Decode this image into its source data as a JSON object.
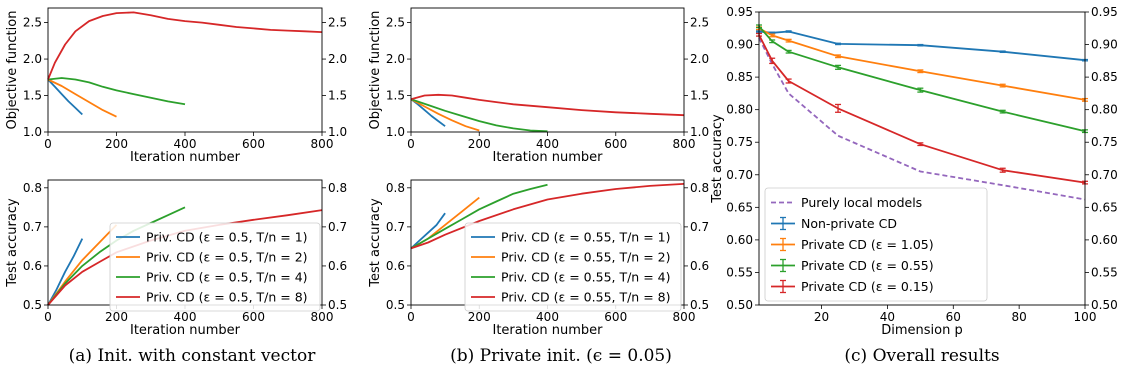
{
  "captions": [
    "(a) Init. with constant vector",
    "(b) Private init. (ϵ = 0.05)",
    "(c) Overall results"
  ],
  "colors": {
    "blue": "#1f77b4",
    "orange": "#ff7f0e",
    "green": "#2ca02c",
    "red": "#d62728",
    "purple": "#9467bd"
  },
  "chart_data": [
    {
      "id": "a-top",
      "type": "line",
      "xlabel": "Iteration number",
      "ylabel": "Objective function",
      "xlim": [
        0,
        800
      ],
      "ylim": [
        1.0,
        2.7
      ],
      "xticks": [
        0,
        200,
        400,
        600,
        800
      ],
      "yticks": [
        1.0,
        1.5,
        2.0,
        2.5
      ],
      "ytick_labels": [
        "1.0",
        "1.5",
        "2.0",
        "2.5"
      ],
      "series": [
        {
          "color": "#1f77b4",
          "x": [
            0,
            20,
            40,
            60,
            80,
            100
          ],
          "y": [
            1.72,
            1.62,
            1.52,
            1.42,
            1.33,
            1.24
          ]
        },
        {
          "color": "#ff7f0e",
          "x": [
            0,
            40,
            80,
            120,
            160,
            200
          ],
          "y": [
            1.72,
            1.63,
            1.52,
            1.41,
            1.3,
            1.21
          ]
        },
        {
          "color": "#2ca02c",
          "x": [
            0,
            40,
            80,
            120,
            160,
            200,
            250,
            300,
            350,
            400
          ],
          "y": [
            1.72,
            1.74,
            1.72,
            1.68,
            1.62,
            1.57,
            1.52,
            1.47,
            1.42,
            1.38
          ]
        },
        {
          "color": "#d62728",
          "x": [
            0,
            20,
            50,
            80,
            120,
            160,
            200,
            250,
            300,
            350,
            400,
            450,
            500,
            550,
            600,
            650,
            700,
            750,
            800
          ],
          "y": [
            1.72,
            1.95,
            2.2,
            2.38,
            2.52,
            2.59,
            2.63,
            2.64,
            2.6,
            2.55,
            2.52,
            2.5,
            2.47,
            2.44,
            2.42,
            2.4,
            2.39,
            2.38,
            2.37
          ]
        }
      ]
    },
    {
      "id": "a-bottom",
      "type": "line",
      "xlabel": "Iteration number",
      "ylabel": "Test accuracy",
      "xlim": [
        0,
        800
      ],
      "ylim": [
        0.5,
        0.82
      ],
      "xticks": [
        0,
        200,
        400,
        600,
        800
      ],
      "yticks": [
        0.5,
        0.6,
        0.7,
        0.8
      ],
      "ytick_labels": [
        "0.5",
        "0.6",
        "0.7",
        "0.8"
      ],
      "legend": [
        "Priv. CD (ε = 0.5, T/n = 1)",
        "Priv. CD (ε = 0.5, T/n = 2)",
        "Priv. CD (ε = 0.5, T/n = 4)",
        "Priv. CD (ε = 0.5, T/n = 8)"
      ],
      "series": [
        {
          "color": "#1f77b4",
          "x": [
            0,
            25,
            50,
            75,
            100
          ],
          "y": [
            0.5,
            0.54,
            0.585,
            0.625,
            0.67
          ]
        },
        {
          "color": "#ff7f0e",
          "x": [
            0,
            50,
            100,
            150,
            200
          ],
          "y": [
            0.5,
            0.56,
            0.615,
            0.66,
            0.705
          ]
        },
        {
          "color": "#2ca02c",
          "x": [
            0,
            50,
            100,
            150,
            200,
            250,
            300,
            350,
            400
          ],
          "y": [
            0.5,
            0.555,
            0.6,
            0.635,
            0.665,
            0.69,
            0.71,
            0.73,
            0.75
          ]
        },
        {
          "color": "#d62728",
          "x": [
            0,
            50,
            100,
            150,
            200,
            300,
            400,
            500,
            600,
            700,
            800
          ],
          "y": [
            0.5,
            0.55,
            0.585,
            0.61,
            0.635,
            0.665,
            0.69,
            0.705,
            0.718,
            0.73,
            0.743
          ]
        }
      ]
    },
    {
      "id": "b-top",
      "type": "line",
      "xlabel": "Iteration number",
      "ylabel": "Objective function",
      "xlim": [
        0,
        800
      ],
      "ylim": [
        1.0,
        2.7
      ],
      "xticks": [
        0,
        200,
        400,
        600,
        800
      ],
      "yticks": [
        1.0,
        1.5,
        2.0,
        2.5
      ],
      "ytick_labels": [
        "1.0",
        "1.5",
        "2.0",
        "2.5"
      ],
      "series": [
        {
          "color": "#1f77b4",
          "x": [
            0,
            20,
            40,
            60,
            80,
            100
          ],
          "y": [
            1.45,
            1.38,
            1.3,
            1.22,
            1.15,
            1.08
          ]
        },
        {
          "color": "#ff7f0e",
          "x": [
            0,
            40,
            80,
            120,
            160,
            200
          ],
          "y": [
            1.45,
            1.35,
            1.25,
            1.16,
            1.08,
            1.02
          ]
        },
        {
          "color": "#2ca02c",
          "x": [
            0,
            50,
            100,
            150,
            200,
            250,
            300,
            350,
            400
          ],
          "y": [
            1.45,
            1.37,
            1.29,
            1.22,
            1.15,
            1.09,
            1.05,
            1.02,
            1.01
          ]
        },
        {
          "color": "#d62728",
          "x": [
            0,
            40,
            80,
            120,
            160,
            200,
            250,
            300,
            400,
            500,
            600,
            700,
            800
          ],
          "y": [
            1.45,
            1.5,
            1.51,
            1.5,
            1.47,
            1.44,
            1.41,
            1.38,
            1.34,
            1.3,
            1.27,
            1.25,
            1.23
          ]
        }
      ]
    },
    {
      "id": "b-bottom",
      "type": "line",
      "xlabel": "Iteration number",
      "ylabel": "Test accuracy",
      "xlim": [
        0,
        800
      ],
      "ylim": [
        0.5,
        0.82
      ],
      "xticks": [
        0,
        200,
        400,
        600,
        800
      ],
      "yticks": [
        0.5,
        0.6,
        0.7,
        0.8
      ],
      "ytick_labels": [
        "0.5",
        "0.6",
        "0.7",
        "0.8"
      ],
      "legend": [
        "Priv. CD (ε = 0.55, T/n = 1)",
        "Priv. CD (ε = 0.55, T/n = 2)",
        "Priv. CD (ε = 0.55, T/n = 4)",
        "Priv. CD (ε = 0.55, T/n = 8)"
      ],
      "series": [
        {
          "color": "#1f77b4",
          "x": [
            0,
            25,
            50,
            75,
            100
          ],
          "y": [
            0.645,
            0.665,
            0.685,
            0.705,
            0.735
          ]
        },
        {
          "color": "#ff7f0e",
          "x": [
            0,
            50,
            100,
            150,
            200
          ],
          "y": [
            0.645,
            0.67,
            0.705,
            0.74,
            0.775
          ]
        },
        {
          "color": "#2ca02c",
          "x": [
            0,
            50,
            100,
            150,
            200,
            250,
            300,
            350,
            400
          ],
          "y": [
            0.645,
            0.67,
            0.695,
            0.72,
            0.745,
            0.765,
            0.785,
            0.797,
            0.808
          ]
        },
        {
          "color": "#d62728",
          "x": [
            0,
            50,
            100,
            200,
            300,
            400,
            500,
            600,
            700,
            800
          ],
          "y": [
            0.645,
            0.66,
            0.68,
            0.715,
            0.745,
            0.77,
            0.785,
            0.797,
            0.805,
            0.81
          ]
        }
      ]
    },
    {
      "id": "c",
      "type": "line",
      "xlabel": "Dimension p",
      "ylabel": "Test accuracy",
      "xlim": [
        1,
        100
      ],
      "ylim": [
        0.5,
        0.95
      ],
      "xticks": [
        20,
        40,
        60,
        80,
        100
      ],
      "yticks": [
        0.5,
        0.55,
        0.6,
        0.65,
        0.7,
        0.75,
        0.8,
        0.85,
        0.9,
        0.95
      ],
      "ytick_labels": [
        "0.50",
        "0.55",
        "0.60",
        "0.65",
        "0.70",
        "0.75",
        "0.80",
        "0.85",
        "0.90",
        "0.95"
      ],
      "legend": [
        "Purely local models",
        "Non-private CD",
        "Private CD (ε = 1.05)",
        "Private CD (ε = 0.55)",
        "Private CD (ε = 0.15)"
      ],
      "series": [
        {
          "name": "Purely local models",
          "color": "#9467bd",
          "dashed": true,
          "x": [
            1,
            5,
            10,
            25,
            50,
            75,
            100
          ],
          "y": [
            0.91,
            0.87,
            0.825,
            0.76,
            0.705,
            0.684,
            0.662
          ]
        },
        {
          "name": "Non-private CD",
          "color": "#1f77b4",
          "x": [
            1,
            5,
            10,
            25,
            50,
            75,
            100
          ],
          "y": [
            0.92,
            0.918,
            0.92,
            0.901,
            0.899,
            0.889,
            0.876
          ],
          "err": [
            0.001,
            0.001,
            0.001,
            0.001,
            0.001,
            0.001,
            0.001
          ]
        },
        {
          "name": "Private CD (ε = 1.05)",
          "color": "#ff7f0e",
          "x": [
            1,
            5,
            10,
            25,
            50,
            75,
            100
          ],
          "y": [
            0.925,
            0.914,
            0.906,
            0.882,
            0.859,
            0.837,
            0.815
          ],
          "err": [
            0.002,
            0.002,
            0.002,
            0.002,
            0.002,
            0.002,
            0.002
          ]
        },
        {
          "name": "Private CD (ε = 0.55)",
          "color": "#2ca02c",
          "x": [
            1,
            5,
            10,
            25,
            50,
            75,
            100
          ],
          "y": [
            0.928,
            0.905,
            0.889,
            0.865,
            0.83,
            0.797,
            0.767
          ],
          "err": [
            0.002,
            0.002,
            0.002,
            0.003,
            0.003,
            0.002,
            0.002
          ]
        },
        {
          "name": "Private CD (ε = 0.15)",
          "color": "#d62728",
          "x": [
            1,
            5,
            10,
            25,
            50,
            75,
            100
          ],
          "y": [
            0.915,
            0.875,
            0.844,
            0.802,
            0.747,
            0.707,
            0.688
          ],
          "err": [
            0.002,
            0.004,
            0.003,
            0.006,
            0.002,
            0.003,
            0.002
          ]
        }
      ]
    }
  ]
}
